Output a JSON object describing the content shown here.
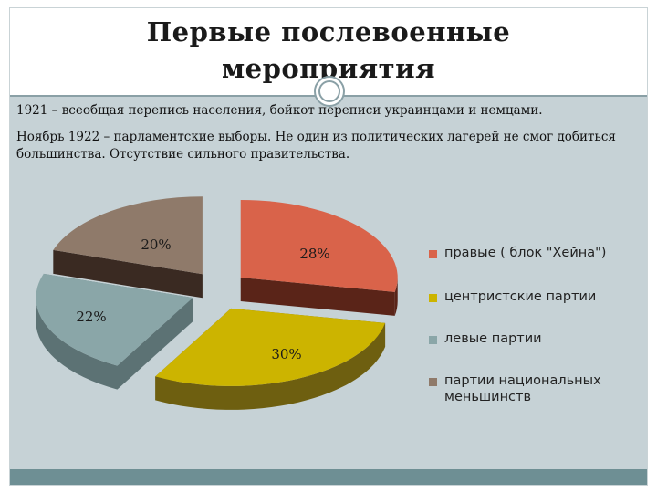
{
  "slide": {
    "title_line1": "Первые послевоенные",
    "title_line2": "мероприятия",
    "paragraph1": "1921 – всеобщая перепись населения, бойкот переписи украинцами и немцами.",
    "paragraph2": "Ноябрь 1922 – парламентские выборы. Не один из политических лагерей не смог добиться большинства. Отсутствие сильного правительства."
  },
  "chart_data": {
    "type": "pie",
    "style": "3d-exploded",
    "slices": [
      {
        "name": "правые ( блок \"Хейна\")",
        "value": 28,
        "label": "28%",
        "color": "#d9634a",
        "side_color": "#5a2418"
      },
      {
        "name": "центристские партии",
        "value": 30,
        "label": "30%",
        "color": "#ccb400",
        "side_color": "#6e5f10"
      },
      {
        "name": "левые партии",
        "value": 22,
        "label": "22%",
        "color": "#8aa6a8",
        "side_color": "#5c7274"
      },
      {
        "name": "партии национальных меньшинств",
        "value": 20,
        "label": "20%",
        "color": "#8f7a6a",
        "side_color": "#3a2a22"
      }
    ],
    "legend_position": "right"
  }
}
